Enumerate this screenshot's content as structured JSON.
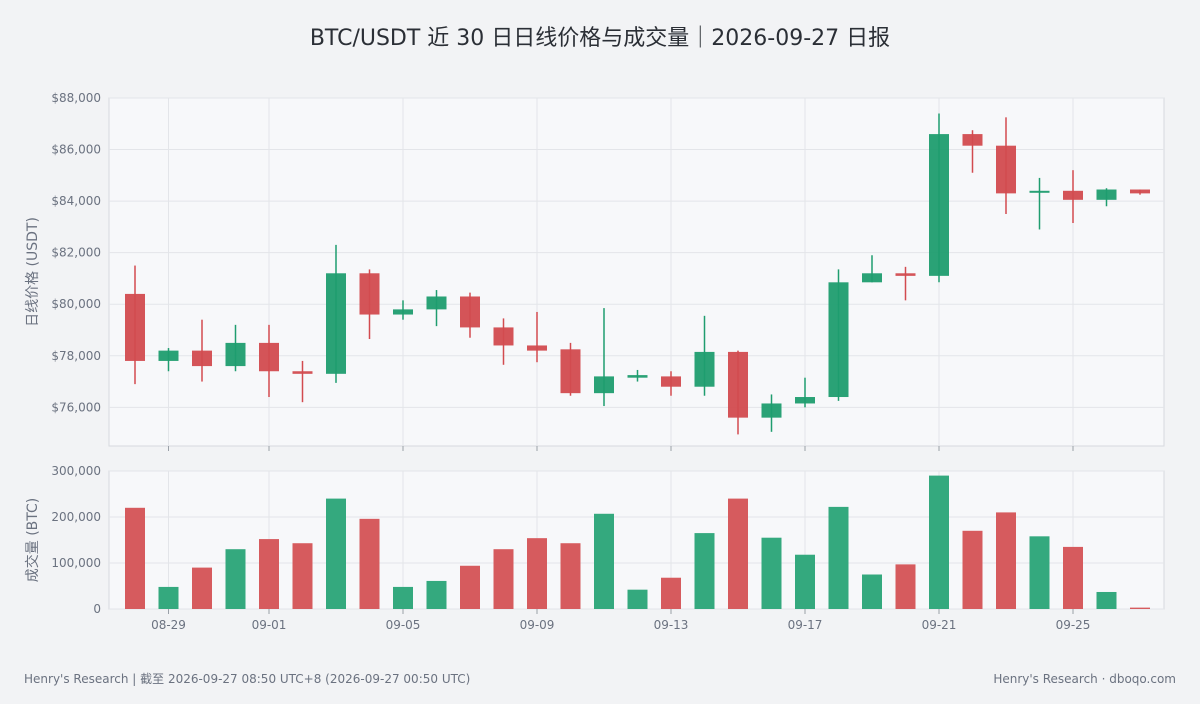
{
  "title": "BTC/USDT 近 30 日日线价格与成交量｜2026-09-27 日报",
  "footer_left": "Henry's Research | 截至 2026-09-27 08:50 UTC+8 (2026-09-27 00:50 UTC)",
  "footer_right": "Henry's Research · dboqo.com",
  "colors": {
    "up": "#1f9d6f",
    "down": "#d24b4f",
    "up_bar": "#34a97e",
    "down_bar": "#d65b5e"
  },
  "chart_data": [
    {
      "type": "candlestick",
      "ylabel": "日线价格 (USDT)",
      "ylim": [
        74500,
        88000
      ],
      "yticks": [
        76000,
        78000,
        80000,
        82000,
        84000,
        86000,
        88000
      ],
      "ytick_labels": [
        "$76,000",
        "$78,000",
        "$80,000",
        "$82,000",
        "$84,000",
        "$86,000",
        "$88,000"
      ],
      "grid": true,
      "dates": [
        "08-28",
        "08-29",
        "08-30",
        "08-31",
        "09-01",
        "09-02",
        "09-03",
        "09-04",
        "09-05",
        "09-06",
        "09-07",
        "09-08",
        "09-09",
        "09-10",
        "09-11",
        "09-12",
        "09-13",
        "09-14",
        "09-15",
        "09-16",
        "09-17",
        "09-18",
        "09-19",
        "09-20",
        "09-21",
        "09-22",
        "09-23",
        "09-24",
        "09-25",
        "09-26",
        "09-27"
      ],
      "xtick_labels": [
        "08-29",
        "09-01",
        "09-05",
        "09-09",
        "09-13",
        "09-17",
        "09-21",
        "09-25"
      ],
      "ohlc": [
        [
          80400,
          81500,
          76900,
          77800
        ],
        [
          77800,
          78300,
          77400,
          78200
        ],
        [
          78200,
          79400,
          77000,
          77600
        ],
        [
          77600,
          79200,
          77400,
          78500
        ],
        [
          78500,
          79200,
          76400,
          77400
        ],
        [
          77400,
          77800,
          76200,
          77300
        ],
        [
          77300,
          82300,
          76950,
          81200
        ],
        [
          81200,
          81350,
          78650,
          79600
        ],
        [
          79600,
          80150,
          79400,
          79800
        ],
        [
          79800,
          80550,
          79150,
          80300
        ],
        [
          80300,
          80450,
          78700,
          79100
        ],
        [
          79100,
          79450,
          77650,
          78400
        ],
        [
          78400,
          79700,
          77750,
          78200
        ],
        [
          78250,
          78500,
          76450,
          76550
        ],
        [
          76550,
          79850,
          76050,
          77200
        ],
        [
          77150,
          77450,
          77000,
          77250
        ],
        [
          77200,
          77400,
          76450,
          76800
        ],
        [
          76800,
          79550,
          76450,
          78150
        ],
        [
          78150,
          78200,
          74950,
          75600
        ],
        [
          75600,
          76500,
          75050,
          76150
        ],
        [
          76150,
          77150,
          76000,
          76400
        ],
        [
          76400,
          81350,
          76250,
          80850
        ],
        [
          80850,
          81900,
          80850,
          81200
        ],
        [
          81200,
          81450,
          80150,
          81100
        ],
        [
          81100,
          87400,
          80850,
          86600
        ],
        [
          86600,
          86750,
          85100,
          86150
        ],
        [
          86150,
          87250,
          83500,
          84300
        ],
        [
          84350,
          84900,
          82900,
          84400
        ],
        [
          84400,
          85200,
          83150,
          84050
        ],
        [
          84050,
          84500,
          83800,
          84450
        ],
        [
          84450,
          84450,
          84250,
          84300
        ]
      ]
    },
    {
      "type": "bar",
      "ylabel": "成交量 (BTC)",
      "ylim": [
        0,
        300000
      ],
      "yticks": [
        0,
        100000,
        200000,
        300000
      ],
      "ytick_labels": [
        "0",
        "100,000",
        "200,000",
        "300,000"
      ],
      "grid": true,
      "values": [
        220000,
        48000,
        90000,
        130000,
        152000,
        143000,
        240000,
        196000,
        48000,
        61000,
        94000,
        130000,
        154000,
        143000,
        207000,
        42000,
        68000,
        165000,
        240000,
        155000,
        118000,
        222000,
        75000,
        97000,
        290000,
        170000,
        210000,
        158000,
        135000,
        37000,
        3000
      ]
    }
  ]
}
